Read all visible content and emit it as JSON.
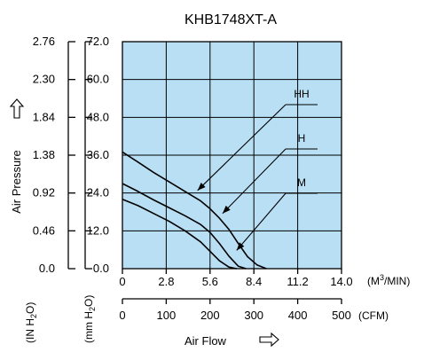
{
  "chart_data": {
    "type": "line",
    "title": "KHB1748XT-A",
    "xlabel": "Air Flow",
    "ylabel": "Air Pressure",
    "x_unit_top": "(M3/MIN)",
    "x_unit_bottom": "(CFM)",
    "y_unit_left": "(IN H2O)",
    "y_unit_right": "(mm H2O)",
    "x_ticks_m3min": [
      "0",
      "2.8",
      "5.6",
      "8.4",
      "11.2",
      "14.0"
    ],
    "x_ticks_cfm": [
      "0",
      "100",
      "200",
      "300",
      "400",
      "500"
    ],
    "y_ticks_mmh2o": [
      "0.0",
      "12.0",
      "24.0",
      "36.0",
      "48.0",
      "60.0",
      "72.0"
    ],
    "y_ticks_inh2o": [
      "0.0",
      "0.46",
      "0.92",
      "1.38",
      "1.84",
      "2.30",
      "2.76"
    ],
    "xlim": [
      0,
      14.0
    ],
    "ylim": [
      0,
      72.0
    ],
    "grid": true,
    "plot_background": "#b9dff5",
    "series": [
      {
        "name": "HH",
        "x": [
          0,
          1.0,
          2.0,
          3.0,
          4.0,
          5.0,
          5.6,
          6.2,
          6.8,
          7.4,
          8.0,
          8.6,
          9.2
        ],
        "y": [
          37.0,
          33.8,
          30.5,
          27.5,
          24.5,
          21.5,
          19.0,
          16.0,
          12.5,
          8.0,
          3.8,
          1.2,
          0.0
        ]
      },
      {
        "name": "H",
        "x": [
          0,
          1.0,
          2.0,
          3.0,
          4.0,
          5.0,
          5.6,
          6.2,
          6.8,
          7.4,
          7.9
        ],
        "y": [
          27.0,
          24.5,
          21.8,
          19.3,
          16.8,
          14.0,
          11.5,
          8.0,
          4.0,
          0.8,
          0.0
        ]
      },
      {
        "name": "M",
        "x": [
          0,
          1.0,
          2.0,
          3.0,
          4.0,
          5.0,
          5.6,
          6.2,
          6.8,
          7.3
        ],
        "y": [
          22.0,
          20.0,
          17.5,
          15.0,
          12.0,
          8.5,
          5.5,
          2.5,
          0.5,
          0.0
        ]
      }
    ],
    "annotations": [
      "HH",
      "H",
      "M"
    ]
  }
}
